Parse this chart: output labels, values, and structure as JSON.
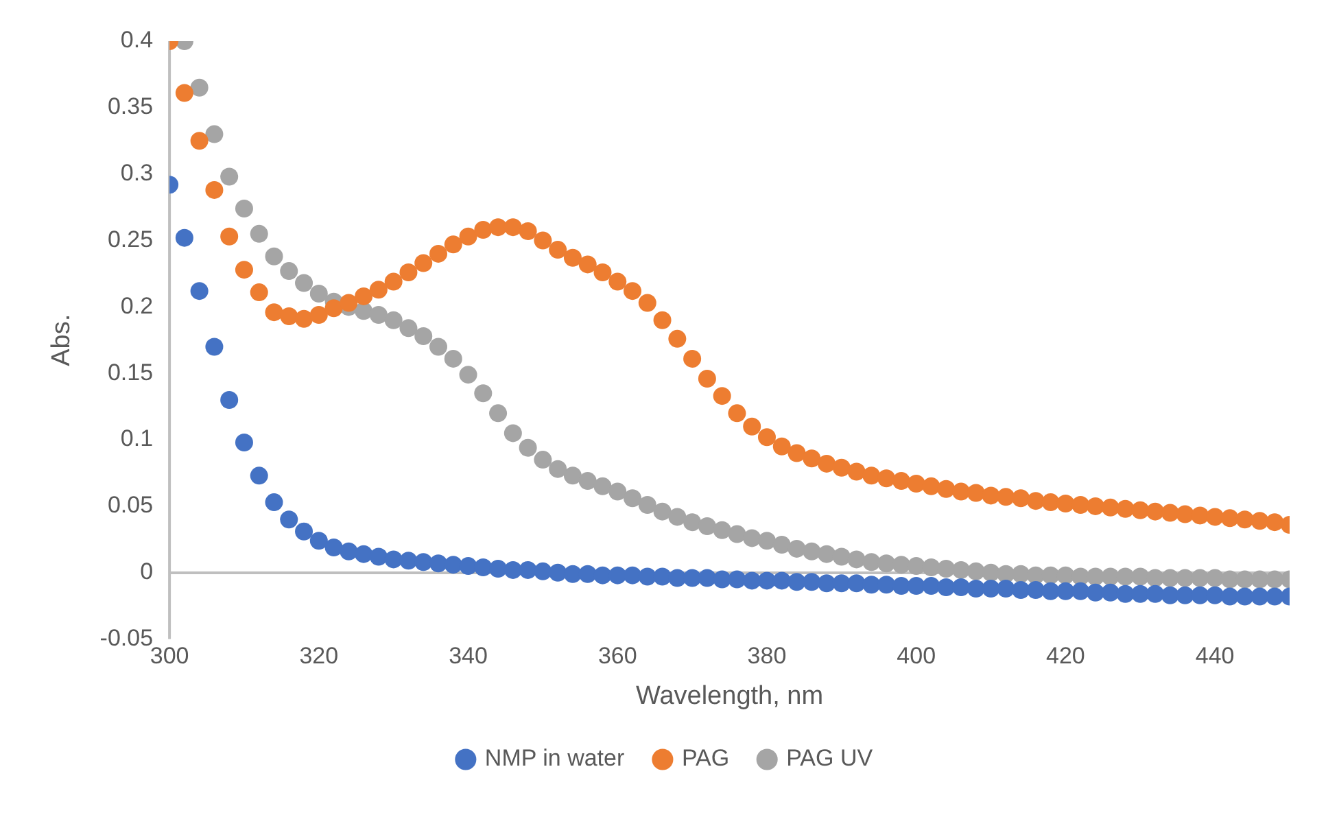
{
  "chart_data": {
    "type": "scatter",
    "xlabel": "Wavelength, nm",
    "ylabel": "Abs.",
    "x": [
      300,
      302,
      304,
      306,
      308,
      310,
      312,
      314,
      316,
      318,
      320,
      322,
      324,
      326,
      328,
      330,
      332,
      334,
      336,
      338,
      340,
      342,
      344,
      346,
      348,
      350,
      352,
      354,
      356,
      358,
      360,
      362,
      364,
      366,
      368,
      370,
      372,
      374,
      376,
      378,
      380,
      382,
      384,
      386,
      388,
      390,
      392,
      394,
      396,
      398,
      400,
      402,
      404,
      406,
      408,
      410,
      412,
      414,
      416,
      418,
      420,
      422,
      424,
      426,
      428,
      430,
      432,
      434,
      436,
      438,
      440,
      442,
      444,
      446,
      448,
      450
    ],
    "series": [
      {
        "name": "NMP in water",
        "color": "#4472c4",
        "values": [
          0.292,
          0.252,
          0.212,
          0.17,
          0.13,
          0.098,
          0.073,
          0.053,
          0.04,
          0.031,
          0.024,
          0.019,
          0.016,
          0.014,
          0.012,
          0.01,
          0.009,
          0.008,
          0.007,
          0.006,
          0.005,
          0.004,
          0.003,
          0.002,
          0.002,
          0.001,
          0.0,
          -0.001,
          -0.001,
          -0.002,
          -0.002,
          -0.002,
          -0.003,
          -0.003,
          -0.004,
          -0.004,
          -0.004,
          -0.005,
          -0.005,
          -0.006,
          -0.006,
          -0.006,
          -0.007,
          -0.007,
          -0.008,
          -0.008,
          -0.008,
          -0.009,
          -0.009,
          -0.01,
          -0.01,
          -0.01,
          -0.011,
          -0.011,
          -0.012,
          -0.012,
          -0.012,
          -0.013,
          -0.013,
          -0.014,
          -0.014,
          -0.014,
          -0.015,
          -0.015,
          -0.016,
          -0.016,
          -0.016,
          -0.017,
          -0.017,
          -0.017,
          -0.017,
          -0.018,
          -0.018,
          -0.018,
          -0.018,
          -0.018
        ]
      },
      {
        "name": "PAG",
        "color": "#ed7d31",
        "values": [
          0.4,
          0.361,
          0.325,
          0.288,
          0.253,
          0.228,
          0.211,
          0.196,
          0.193,
          0.191,
          0.194,
          0.199,
          0.203,
          0.208,
          0.213,
          0.219,
          0.226,
          0.233,
          0.24,
          0.247,
          0.253,
          0.258,
          0.26,
          0.26,
          0.257,
          0.25,
          0.243,
          0.237,
          0.232,
          0.226,
          0.219,
          0.212,
          0.203,
          0.19,
          0.176,
          0.161,
          0.146,
          0.133,
          0.12,
          0.11,
          0.102,
          0.095,
          0.09,
          0.086,
          0.082,
          0.079,
          0.076,
          0.073,
          0.071,
          0.069,
          0.067,
          0.065,
          0.063,
          0.061,
          0.06,
          0.058,
          0.057,
          0.056,
          0.054,
          0.053,
          0.052,
          0.051,
          0.05,
          0.049,
          0.048,
          0.047,
          0.046,
          0.045,
          0.044,
          0.043,
          0.042,
          0.041,
          0.04,
          0.039,
          0.038,
          0.036
        ]
      },
      {
        "name": "PAG UV",
        "color": "#a5a5a5",
        "values": [
          null,
          0.4,
          0.365,
          0.33,
          0.298,
          0.274,
          0.255,
          0.238,
          0.227,
          0.218,
          0.21,
          0.204,
          0.2,
          0.197,
          0.194,
          0.19,
          0.184,
          0.178,
          0.17,
          0.161,
          0.149,
          0.135,
          0.12,
          0.105,
          0.094,
          0.085,
          0.078,
          0.073,
          0.069,
          0.065,
          0.061,
          0.056,
          0.051,
          0.046,
          0.042,
          0.038,
          0.035,
          0.032,
          0.029,
          0.026,
          0.024,
          0.021,
          0.018,
          0.016,
          0.014,
          0.012,
          0.01,
          0.008,
          0.007,
          0.006,
          0.005,
          0.004,
          0.003,
          0.002,
          0.001,
          0,
          -0.001,
          -0.001,
          -0.002,
          -0.002,
          -0.002,
          -0.003,
          -0.003,
          -0.003,
          -0.003,
          -0.003,
          -0.004,
          -0.004,
          -0.004,
          -0.004,
          -0.004,
          -0.005,
          -0.005,
          -0.005,
          -0.005,
          -0.005
        ]
      }
    ],
    "xlim": [
      300,
      450
    ],
    "xticks": [
      300,
      320,
      340,
      360,
      380,
      400,
      420,
      440
    ],
    "ylim": [
      -0.05,
      0.4
    ],
    "yticks": [
      -0.05,
      0,
      0.05,
      0.1,
      0.15,
      0.2,
      0.25,
      0.3,
      0.35,
      0.4
    ],
    "legend": "bottom",
    "marker": "circle"
  }
}
